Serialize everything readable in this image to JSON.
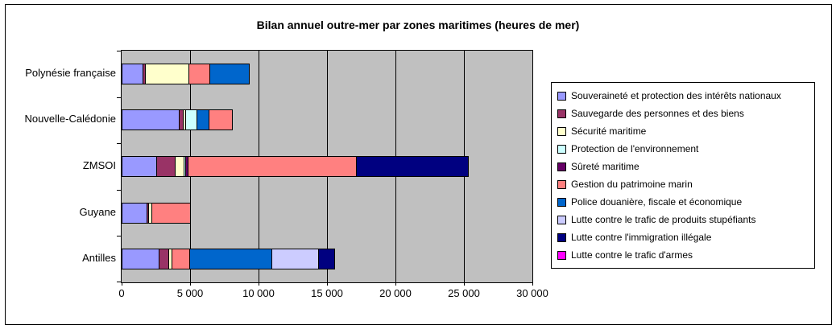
{
  "chart_data": {
    "type": "bar",
    "orientation": "horizontal",
    "stacked": true,
    "title": "Bilan annuel outre-mer par zones maritimes (heures de mer)",
    "xlabel": "",
    "ylabel": "",
    "xlim": [
      0,
      30000
    ],
    "grid": true,
    "legend_position": "right",
    "plot_bg": "#C0C0C0",
    "x_ticks": [
      {
        "v": 0,
        "label": "0"
      },
      {
        "v": 5000,
        "label": "5 000"
      },
      {
        "v": 10000,
        "label": "10 000"
      },
      {
        "v": 15000,
        "label": "15 000"
      },
      {
        "v": 20000,
        "label": "20 000"
      },
      {
        "v": 25000,
        "label": "25 000"
      },
      {
        "v": 30000,
        "label": "30 000"
      }
    ],
    "categories": [
      {
        "label": "Polynésie française"
      },
      {
        "label": "Nouvelle-Calédonie",
        "segment_order": [
          0,
          1,
          2,
          3,
          4,
          6,
          5,
          7,
          8,
          9
        ]
      },
      {
        "label": "ZMSOI"
      },
      {
        "label": "Guyane"
      },
      {
        "label": "Antilles"
      }
    ],
    "series": [
      {
        "name": "Souveraineté et protection des intérêts nationaux",
        "color": "#9999FF",
        "values": [
          1500,
          4200,
          2500,
          1800,
          2700
        ]
      },
      {
        "name": "Sauvegarde des personnes et des biens",
        "color": "#993366",
        "values": [
          200,
          250,
          1400,
          150,
          700
        ]
      },
      {
        "name": "Sécurité maritime",
        "color": "#FFFFCC",
        "values": [
          3200,
          200,
          600,
          250,
          250
        ]
      },
      {
        "name": "Protection de l'environnement",
        "color": "#CCFFFF",
        "values": [
          0,
          800,
          150,
          0,
          0
        ]
      },
      {
        "name": "Sûreté maritime",
        "color": "#660066",
        "values": [
          0,
          0,
          150,
          0,
          0
        ]
      },
      {
        "name": "Gestion du patrimoine marin",
        "color": "#FF8080",
        "values": [
          1500,
          1700,
          12300,
          2800,
          1300
        ]
      },
      {
        "name": "Police douanière, fiscale et économique",
        "color": "#0066CC",
        "values": [
          2900,
          900,
          0,
          0,
          6000
        ]
      },
      {
        "name": "Lutte contre le trafic de produits stupéfiants",
        "color": "#CCCCFF",
        "values": [
          0,
          0,
          0,
          0,
          3400
        ]
      },
      {
        "name": "Lutte contre l'immigration illégale",
        "color": "#000080",
        "values": [
          0,
          0,
          8200,
          0,
          1200
        ]
      },
      {
        "name": "Lutte contre le trafic d'armes",
        "color": "#FF00FF",
        "values": [
          0,
          0,
          0,
          0,
          0
        ]
      }
    ]
  }
}
